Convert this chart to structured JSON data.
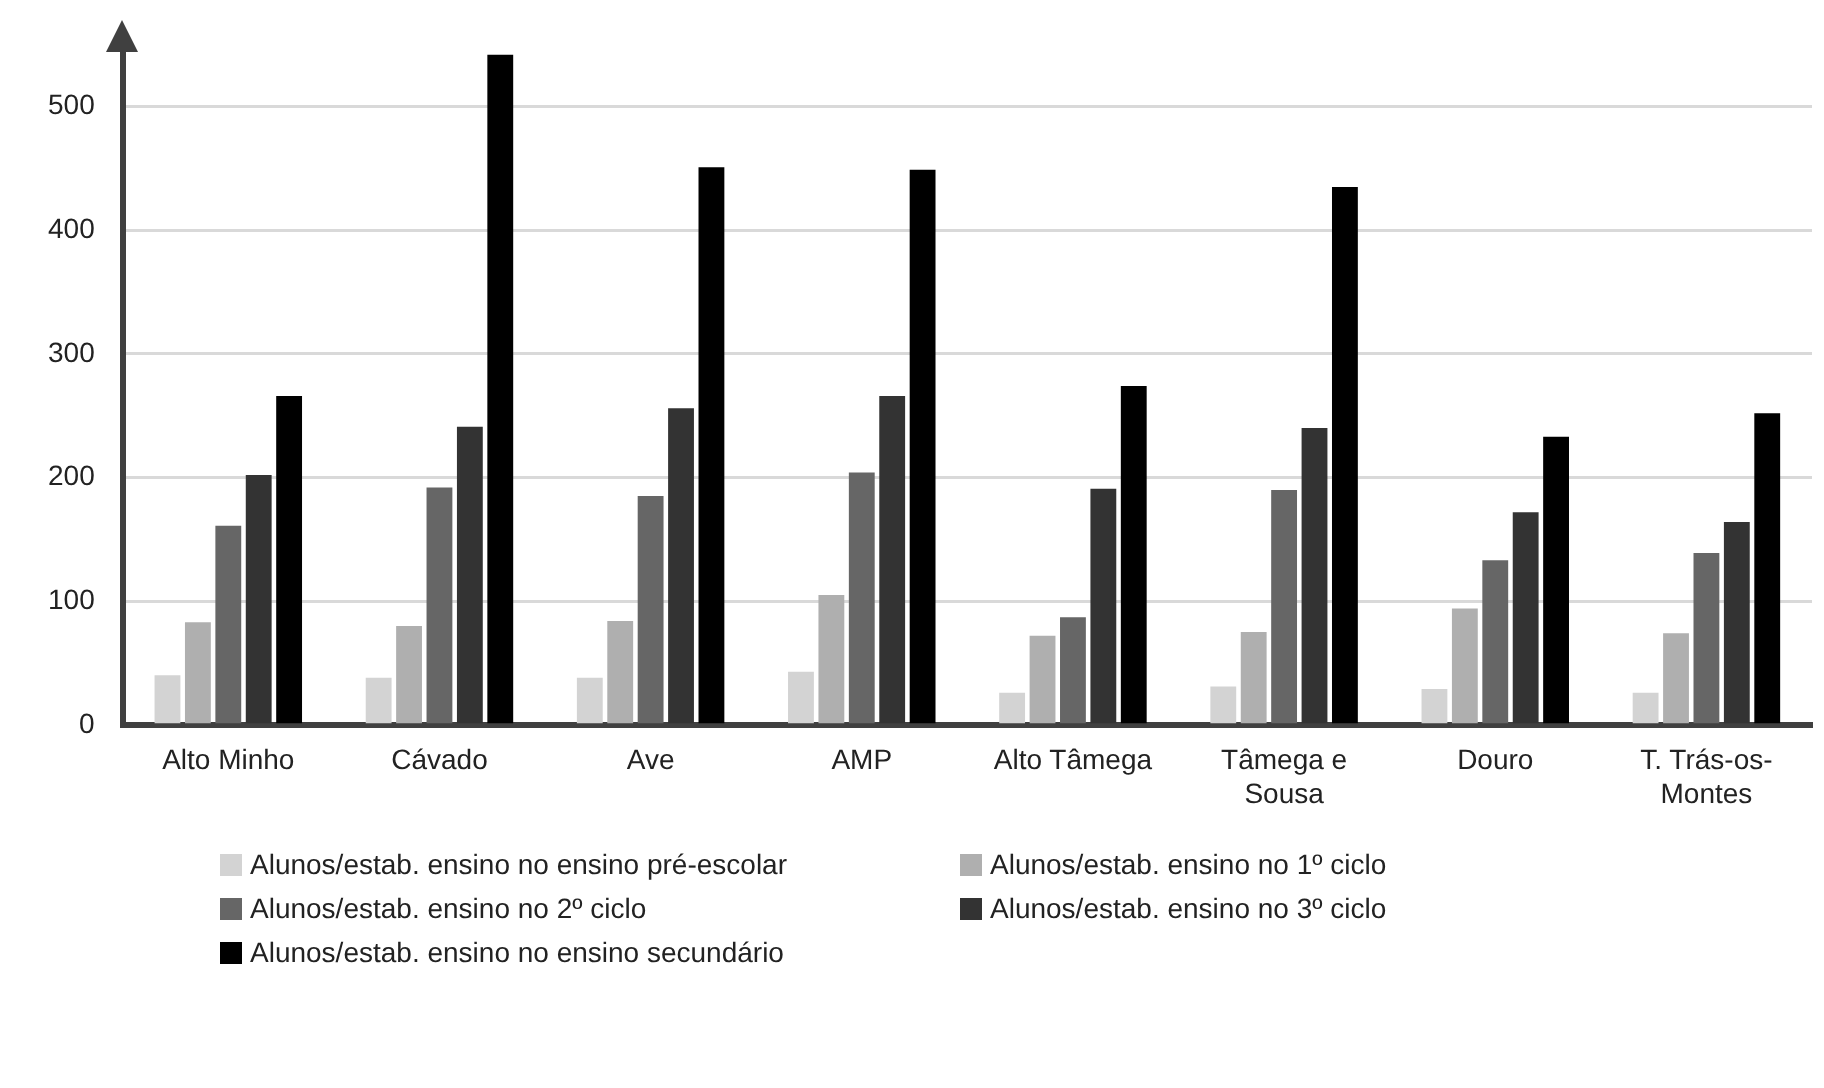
{
  "chart_data": {
    "type": "bar",
    "categories": [
      "Alto Minho",
      "Cávado",
      "Ave",
      "AMP",
      "Alto Tâmega",
      "Tâmega e Sousa",
      "Douro",
      "T. Trás-os-Montes"
    ],
    "series": [
      {
        "name": "Alunos/estab. ensino no ensino pré-escolar",
        "color": "#d3d3d3",
        "values": [
          40,
          38,
          38,
          43,
          26,
          31,
          29,
          26
        ]
      },
      {
        "name": "Alunos/estab. ensino no 1º ciclo",
        "color": "#afafaf",
        "values": [
          83,
          80,
          84,
          105,
          72,
          75,
          94,
          74
        ]
      },
      {
        "name": "Alunos/estab. ensino no 2º ciclo",
        "color": "#666666",
        "values": [
          161,
          192,
          185,
          204,
          87,
          190,
          133,
          139
        ]
      },
      {
        "name": "Alunos/estab. ensino no 3º ciclo",
        "color": "#333333",
        "values": [
          202,
          241,
          256,
          266,
          191,
          240,
          172,
          164
        ]
      },
      {
        "name": "Alunos/estab. ensino no ensino secundário",
        "color": "#000000",
        "values": [
          266,
          542,
          451,
          449,
          274,
          435,
          233,
          252
        ]
      }
    ],
    "ylim": [
      0,
      550
    ],
    "yticks": [
      0,
      100,
      200,
      300,
      400,
      500
    ],
    "grid": "y",
    "legend": "bottom"
  }
}
